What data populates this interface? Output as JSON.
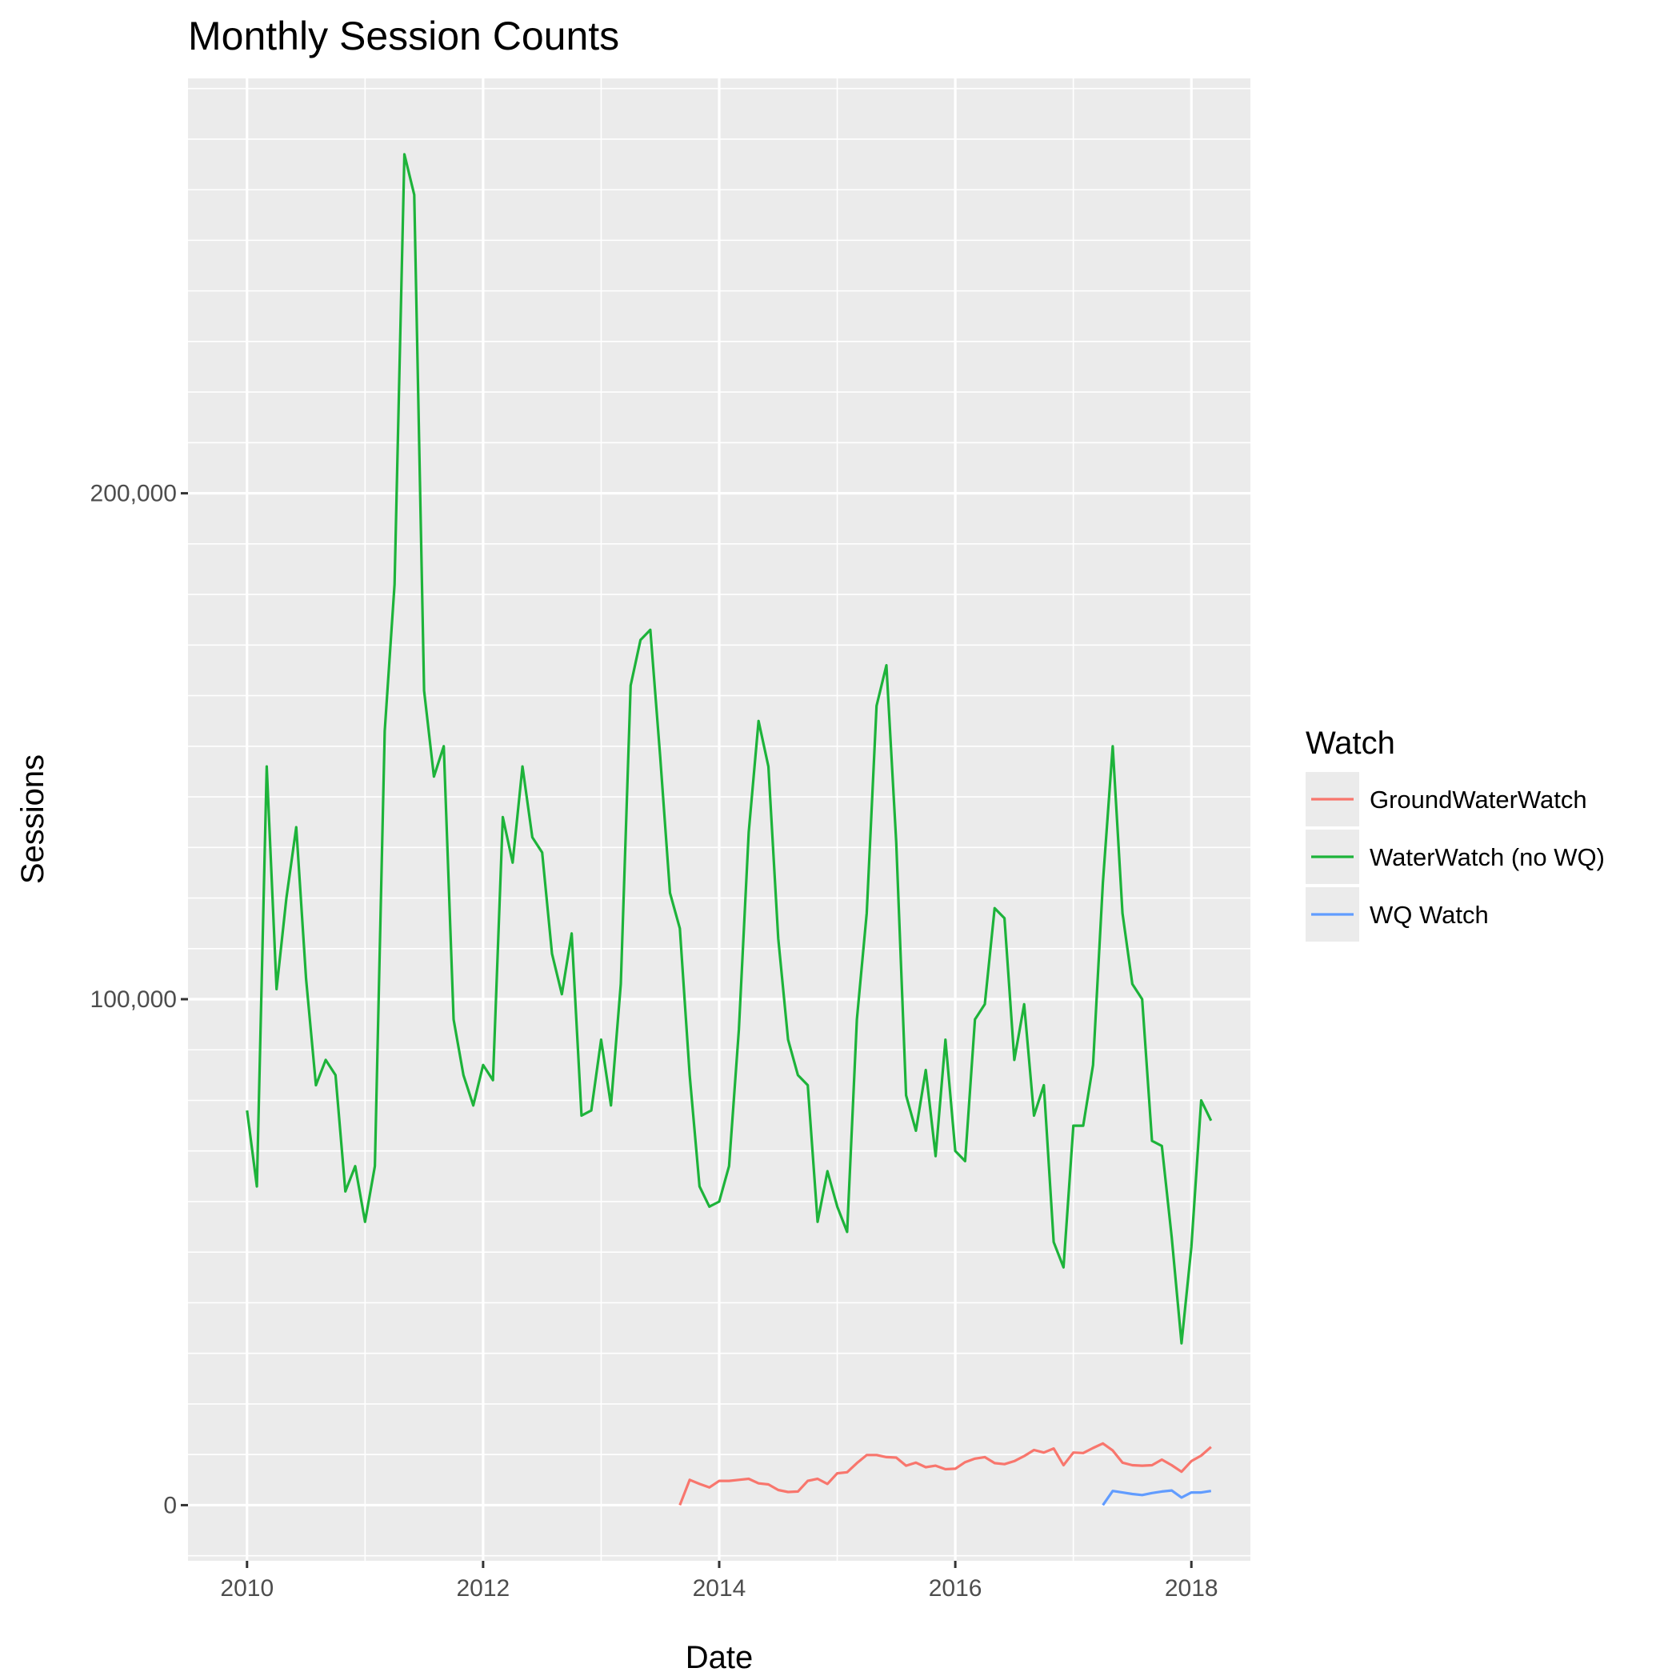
{
  "chart_data": {
    "type": "line",
    "title": "Monthly Session Counts",
    "xlabel": "Date",
    "ylabel": "Sessions",
    "x_ticks": [
      "2010",
      "2012",
      "2014",
      "2016",
      "2018"
    ],
    "y_ticks": [
      "0",
      "100,000",
      "200,000"
    ],
    "xlim": [
      "2009-07",
      "2018-07"
    ],
    "ylim": [
      -11000,
      282000
    ],
    "grid": true,
    "legend": {
      "title": "Watch",
      "position": "right"
    },
    "series": [
      {
        "name": "GroundWaterWatch",
        "color": "#F8766D",
        "start": "2013-09",
        "values": [
          0,
          5000,
          4200,
          3500,
          4800,
          4800,
          5000,
          5200,
          4300,
          4100,
          3000,
          2600,
          2700,
          4800,
          5200,
          4200,
          6300,
          6500,
          8300,
          9900,
          9900,
          9500,
          9400,
          7800,
          8400,
          7500,
          7800,
          7100,
          7200,
          8500,
          9200,
          9500,
          8300,
          8100,
          8700,
          9700,
          10900,
          10400,
          11200,
          7900,
          10400,
          10300,
          11300,
          12200,
          10800,
          8400,
          7900,
          7800,
          7900,
          9000,
          7900,
          6600,
          8700,
          9800,
          11500
        ]
      },
      {
        "name": "WaterWatch (no WQ)",
        "color": "#1DB33A",
        "start": "2010-01",
        "values": [
          78000,
          63000,
          146000,
          102000,
          120000,
          134000,
          104000,
          83000,
          88000,
          85000,
          62000,
          67000,
          56000,
          67000,
          153000,
          182000,
          267000,
          259000,
          161000,
          144000,
          150000,
          96000,
          85000,
          79000,
          87000,
          84000,
          136000,
          127000,
          146000,
          132000,
          129000,
          109000,
          101000,
          113000,
          77000,
          78000,
          92000,
          79000,
          103000,
          162000,
          171000,
          173000,
          148000,
          121000,
          114000,
          85000,
          63000,
          59000,
          60000,
          67000,
          94000,
          133000,
          155000,
          146000,
          112000,
          92000,
          85000,
          83000,
          56000,
          66000,
          59000,
          54000,
          96000,
          117000,
          158000,
          166000,
          131000,
          81000,
          74000,
          86000,
          69000,
          92000,
          70000,
          68000,
          96000,
          99000,
          118000,
          116000,
          88000,
          99000,
          77000,
          83000,
          52000,
          47000,
          75000,
          75000,
          87000,
          123000,
          150000,
          117000,
          103000,
          100000,
          72000,
          71000,
          53000,
          32000,
          51000,
          80000,
          76000
        ]
      },
      {
        "name": "WQ Watch",
        "color": "#619CFF",
        "start": "2017-04",
        "values": [
          0,
          2800,
          2500,
          2200,
          2000,
          2400,
          2700,
          2900,
          1500,
          2500,
          2500,
          2800
        ]
      }
    ]
  }
}
